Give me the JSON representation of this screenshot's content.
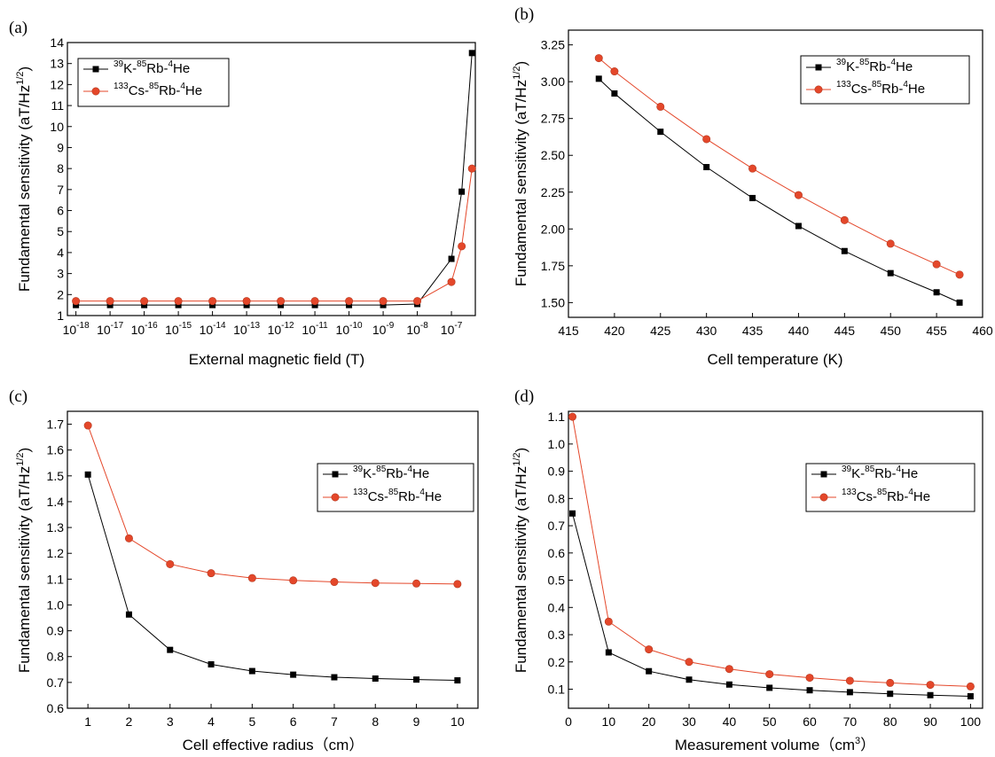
{
  "colors": {
    "series1": "#000000",
    "series2": "#e4472a",
    "series2_line": "#e4472a",
    "series1_line": "#000000"
  },
  "legend_entries": [
    {
      "iso": "39",
      "el": "K",
      "mid": "-",
      "iso2": "85",
      "el2": "Rb",
      "mid2": "-",
      "iso3": "4",
      "el3": "He"
    },
    {
      "iso": "133",
      "el": "Cs",
      "mid": "-",
      "iso2": "85",
      "el2": "Rb",
      "mid2": "-",
      "iso3": "4",
      "el3": "He"
    }
  ],
  "ylabel": {
    "main": "Fundamental sensitivity (aT/Hz",
    "sup": "1/2",
    "close": ")"
  },
  "chart_data": [
    {
      "panel": "(a)",
      "type": "line",
      "xscale": "log",
      "xlabel": "External magnetic field (T)",
      "ylim": [
        1,
        14
      ],
      "yticks": [
        1,
        2,
        3,
        4,
        5,
        6,
        7,
        8,
        9,
        10,
        11,
        12,
        13,
        14
      ],
      "xtick_base": "10",
      "xtick_exponents": [
        "-18",
        "-17",
        "-16",
        "-15",
        "-14",
        "-13",
        "-12",
        "-11",
        "-10",
        "-9",
        "-8",
        "-7"
      ],
      "legend_position": "top-left",
      "series": [
        {
          "name": "39K-85Rb-4He",
          "marker": "square",
          "x": [
            1e-18,
            1e-17,
            1e-16,
            1e-15,
            1e-14,
            1e-13,
            1e-12,
            1e-11,
            1e-10,
            1e-09,
            1e-08,
            1e-07,
            2e-07,
            4e-07
          ],
          "y": [
            1.5,
            1.5,
            1.5,
            1.5,
            1.5,
            1.5,
            1.5,
            1.5,
            1.5,
            1.5,
            1.55,
            3.7,
            6.9,
            13.5
          ]
        },
        {
          "name": "133Cs-85Rb-4He",
          "marker": "circle",
          "x": [
            1e-18,
            1e-17,
            1e-16,
            1e-15,
            1e-14,
            1e-13,
            1e-12,
            1e-11,
            1e-10,
            1e-09,
            1e-08,
            1e-07,
            2e-07,
            4e-07
          ],
          "y": [
            1.69,
            1.69,
            1.69,
            1.69,
            1.69,
            1.69,
            1.69,
            1.69,
            1.69,
            1.69,
            1.69,
            2.6,
            4.3,
            8.0
          ]
        }
      ]
    },
    {
      "panel": "(b)",
      "type": "line",
      "xlabel": "Cell temperature (K)",
      "xlim": [
        415,
        460
      ],
      "xticks": [
        415,
        420,
        425,
        430,
        435,
        440,
        445,
        450,
        455,
        460
      ],
      "ylim": [
        1.4,
        3.35
      ],
      "yticks": [
        1.5,
        1.75,
        2.0,
        2.25,
        2.5,
        2.75,
        3.0,
        3.25
      ],
      "ytick_labels": [
        "1.50",
        "1.75",
        "2.00",
        "2.25",
        "2.50",
        "2.75",
        "3.00",
        "3.25"
      ],
      "legend_position": "top-right",
      "series": [
        {
          "name": "39K-85Rb-4He",
          "marker": "square",
          "x": [
            418.3,
            420,
            425,
            430,
            435,
            440,
            445,
            450,
            455,
            457.5
          ],
          "y": [
            3.02,
            2.92,
            2.66,
            2.42,
            2.21,
            2.02,
            1.85,
            1.7,
            1.57,
            1.5
          ]
        },
        {
          "name": "133Cs-85Rb-4He",
          "marker": "circle",
          "x": [
            418.3,
            420,
            425,
            430,
            435,
            440,
            445,
            450,
            455,
            457.5
          ],
          "y": [
            3.16,
            3.07,
            2.83,
            2.61,
            2.41,
            2.23,
            2.06,
            1.9,
            1.76,
            1.69
          ]
        }
      ]
    },
    {
      "panel": "(c)",
      "type": "line",
      "xlabel": "Cell effective radius（cm）",
      "xlim": [
        0.5,
        10.5
      ],
      "xticks": [
        1,
        2,
        3,
        4,
        5,
        6,
        7,
        8,
        9,
        10
      ],
      "ylim": [
        0.6,
        1.75
      ],
      "yticks": [
        0.6,
        0.7,
        0.8,
        0.9,
        1.0,
        1.1,
        1.2,
        1.3,
        1.4,
        1.5,
        1.6,
        1.7
      ],
      "ytick_labels": [
        "0.6",
        "0.7",
        "0.8",
        "0.9",
        "1.0",
        "1.1",
        "1.2",
        "1.3",
        "1.4",
        "1.5",
        "1.6",
        "1.7"
      ],
      "legend_position": "top-right",
      "series": [
        {
          "name": "39K-85Rb-4He",
          "marker": "square",
          "x": [
            1,
            2,
            3,
            4,
            5,
            6,
            7,
            8,
            9,
            10
          ],
          "y": [
            1.505,
            0.963,
            0.826,
            0.77,
            0.744,
            0.73,
            0.72,
            0.715,
            0.711,
            0.708
          ]
        },
        {
          "name": "133Cs-85Rb-4He",
          "marker": "circle",
          "x": [
            1,
            2,
            3,
            4,
            5,
            6,
            7,
            8,
            9,
            10
          ],
          "y": [
            1.695,
            1.258,
            1.158,
            1.123,
            1.104,
            1.095,
            1.089,
            1.085,
            1.083,
            1.081
          ]
        }
      ]
    },
    {
      "panel": "(d)",
      "type": "line",
      "xlabel": {
        "main": "Measurement volume（cm",
        "sup": "3",
        "close": "）"
      },
      "xlim": [
        0,
        103
      ],
      "xticks": [
        0,
        10,
        20,
        30,
        40,
        50,
        60,
        70,
        80,
        90,
        100
      ],
      "ylim": [
        0.03,
        1.12
      ],
      "yticks": [
        0.1,
        0.2,
        0.3,
        0.4,
        0.5,
        0.6,
        0.7,
        0.8,
        0.9,
        1.0,
        1.1
      ],
      "ytick_labels": [
        "0.1",
        "0.2",
        "0.3",
        "0.4",
        "0.5",
        "0.6",
        "0.7",
        "0.8",
        "0.9",
        "1.0",
        "1.1"
      ],
      "legend_position": "top-right",
      "series": [
        {
          "name": "39K-85Rb-4He",
          "marker": "square",
          "x": [
            1,
            10,
            20,
            30,
            40,
            50,
            60,
            70,
            80,
            90,
            100
          ],
          "y": [
            0.745,
            0.235,
            0.166,
            0.135,
            0.117,
            0.105,
            0.096,
            0.089,
            0.083,
            0.078,
            0.074
          ]
        },
        {
          "name": "133Cs-85Rb-4He",
          "marker": "circle",
          "x": [
            1,
            10,
            20,
            30,
            40,
            50,
            60,
            70,
            80,
            90,
            100
          ],
          "y": [
            1.1,
            0.348,
            0.246,
            0.2,
            0.174,
            0.155,
            0.142,
            0.131,
            0.123,
            0.116,
            0.11
          ]
        }
      ]
    }
  ]
}
